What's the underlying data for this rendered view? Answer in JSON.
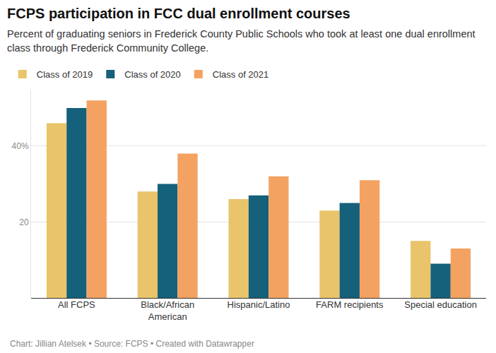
{
  "chart_data": {
    "type": "bar",
    "title": "FCPS participation in FCC dual enrollment courses",
    "subtitle": "Percent of graduating seniors in Frederick County Public Schools who took at least one dual enrollment class through Frederick Community College.",
    "caption": "Chart: Jillian Atelsek • Source: FCPS • Created with Datawrapper",
    "categories": [
      "All FCPS",
      "Black/African\nAmerican",
      "Hispanic/Latino",
      "FARM recipients",
      "Special education"
    ],
    "series": [
      {
        "name": "Class of 2019",
        "color": "#e9c46a",
        "values": [
          46,
          28,
          26,
          23,
          15
        ]
      },
      {
        "name": "Class of 2020",
        "color": "#15607a",
        "values": [
          50,
          30,
          27,
          25,
          9
        ]
      },
      {
        "name": "Class of 2021",
        "color": "#f4a261",
        "values": [
          52,
          38,
          32,
          31,
          13
        ]
      }
    ],
    "ylim": [
      0,
      55
    ],
    "yticks": [
      20,
      {
        "value": 40,
        "label": "40%"
      }
    ],
    "grid": true,
    "legend": "top-left"
  }
}
